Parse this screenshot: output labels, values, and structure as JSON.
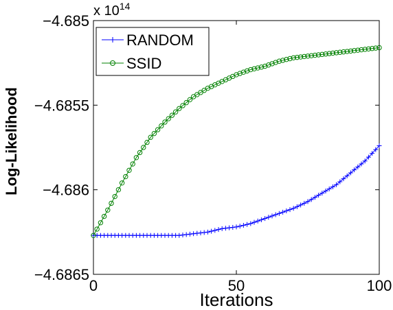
{
  "chart_data": {
    "type": "line",
    "title": "",
    "xlabel": "Iterations",
    "ylabel": "Log-Likelihood",
    "exponent_label": "x 10",
    "exponent_power": "14",
    "xlim": [
      0,
      100
    ],
    "ylim": [
      -4.6865,
      -4.685
    ],
    "xticks": [
      0,
      50,
      100
    ],
    "xtick_labels": [
      "0",
      "50",
      "100"
    ],
    "yticks": [
      -4.6865,
      -4.686,
      -4.6855,
      -4.685
    ],
    "ytick_labels": [
      "−4.6865",
      "−4.686",
      "−4.6855",
      "−4.685"
    ],
    "grid": false,
    "legend_position": "top-left",
    "series": [
      {
        "name": "RANDOM",
        "color": "#0000ff",
        "marker": "plus",
        "x": [
          0,
          5,
          10,
          15,
          20,
          25,
          30,
          35,
          40,
          45,
          50,
          55,
          60,
          65,
          70,
          75,
          80,
          85,
          90,
          95,
          100
        ],
        "y": [
          -4.68627,
          -4.68627,
          -4.68627,
          -4.68627,
          -4.68627,
          -4.68627,
          -4.68627,
          -4.68626,
          -4.68625,
          -4.68623,
          -4.68622,
          -4.6862,
          -4.68617,
          -4.68614,
          -4.68611,
          -4.68607,
          -4.68602,
          -4.68597,
          -4.6859,
          -4.68583,
          -4.68574
        ]
      },
      {
        "name": "SSID",
        "color": "#008000",
        "marker": "circle",
        "x": [
          0,
          5,
          10,
          15,
          20,
          25,
          30,
          35,
          40,
          45,
          50,
          55,
          60,
          65,
          70,
          75,
          80,
          85,
          90,
          95,
          100
        ],
        "y": [
          -4.68627,
          -4.68612,
          -4.68596,
          -4.68581,
          -4.68569,
          -4.6856,
          -4.68552,
          -4.68545,
          -4.6854,
          -4.68536,
          -4.68532,
          -4.68529,
          -4.68527,
          -4.68524,
          -4.68522,
          -4.68521,
          -4.6852,
          -4.68519,
          -4.68518,
          -4.68517,
          -4.68516
        ]
      }
    ]
  }
}
